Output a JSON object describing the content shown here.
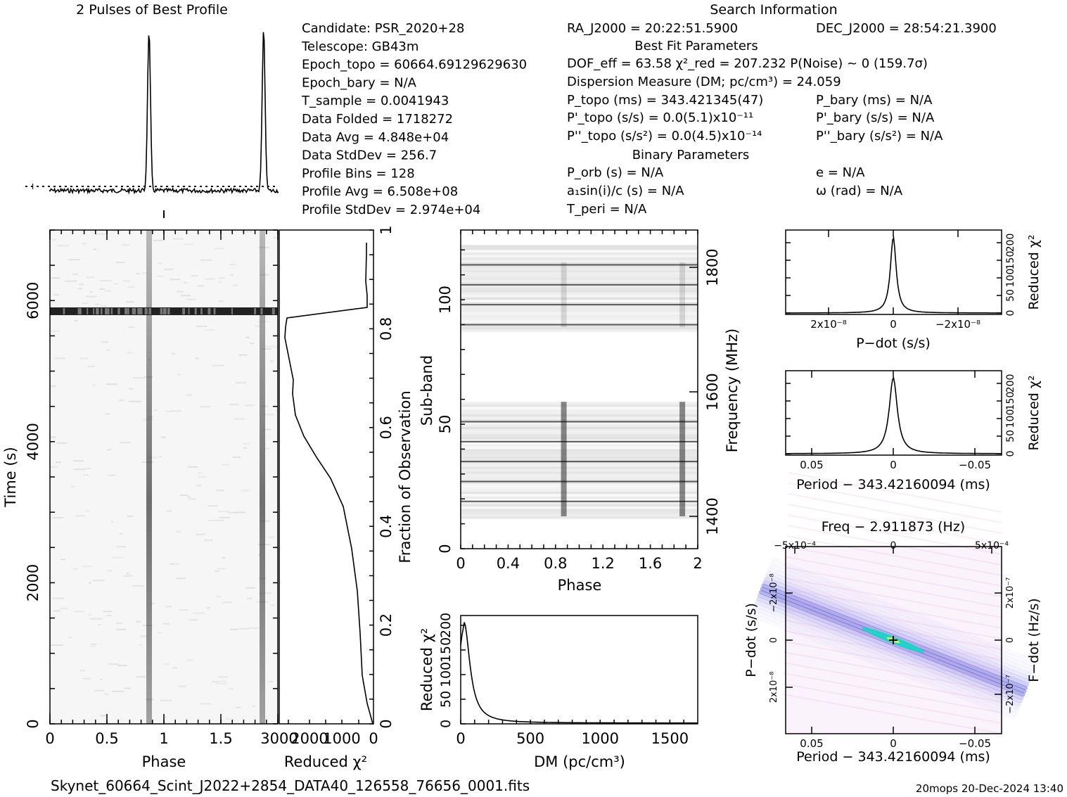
{
  "titles": {
    "profile": "2 Pulses of Best Profile",
    "search": "Search Information",
    "best_fit": "Best Fit Parameters",
    "binary": "Binary Parameters"
  },
  "info_left": [
    "Candidate:  PSR_2020+28",
    "Telescope:  GB43m",
    "Epoch_topo = 60664.69129629630",
    "Epoch_bary = N/A",
    "T_sample        =  0.0041943",
    "Data Folded    =  1718272",
    "Data Avg        =  4.848e+04",
    "Data StdDev   =  256.7",
    "Profile Bins    =  128",
    "Profile Avg     =  6.508e+08",
    "Profile StdDev =  2.974e+04"
  ],
  "info_mid": {
    "ra": "RA_J2000 = 20:22:51.5900",
    "dof": "DOF_eff = 63.58  χ²_red = 207.232  P(Noise) ~ 0   (159.7σ)",
    "dm": "Dispersion Measure (DM; pc/cm³) = 24.059",
    "p_topo": "P_topo (ms) =  343.421345(47)",
    "pd_topo": "P'_topo (s/s) = 0.0(5.1)x10⁻¹¹",
    "pdd_topo": "P''_topo (s/s²) = 0.0(4.5)x10⁻¹⁴",
    "p_orb": "P_orb (s) = N/A",
    "a1": "a₁sin(i)/c (s) = N/A",
    "t_peri": "T_peri = N/A"
  },
  "info_right": {
    "dec": "DEC_J2000 = 28:54:21.3900",
    "p_bary": "P_bary (ms) = N/A",
    "pd_bary": "P'_bary (s/s) = N/A",
    "pdd_bary": "P''_bary (s/s²) = N/A",
    "e": "e = N/A",
    "omega": "ω (rad) = N/A"
  },
  "footer": {
    "filename": "Skynet_60664_Scint_J2022+2854_DATA40_126558_76656_0001.fits",
    "stamp": "20mops 20-Dec-2024 13:40"
  },
  "chart_data": [
    {
      "type": "line",
      "name": "profile",
      "title": "2 Pulses of Best Profile",
      "xlim": [
        0,
        2
      ],
      "pulse_phases": [
        0.87,
        1.87
      ]
    },
    {
      "type": "heatmap",
      "name": "time-phase",
      "xlabel": "Phase",
      "ylabel": "Time (s)",
      "xlim": [
        0,
        2
      ],
      "ylim": [
        0,
        7000
      ],
      "xticks": [
        "0",
        "0.5",
        "1",
        "1.5",
        "2"
      ],
      "yticks": [
        "0",
        "2000",
        "4000",
        "6000"
      ],
      "pulse_phases": [
        0.87,
        1.87
      ],
      "rfi_time": 6000
    },
    {
      "type": "line",
      "name": "time-chi2",
      "xlabel": "Reduced χ²",
      "ylabel_right": "Fraction of Observation",
      "xticks": [
        "3000",
        "2000",
        "1000",
        "0"
      ],
      "yticks_right": [
        "0",
        "0.2",
        "0.4",
        "0.6",
        "0.8",
        "1"
      ]
    },
    {
      "type": "heatmap",
      "name": "subband-phase",
      "xlabel": "Phase",
      "ylabel": "Sub-band",
      "ylabel_right": "Frequency (MHz)",
      "xlim": [
        0,
        2
      ],
      "ylim": [
        0,
        128
      ],
      "xticks": [
        "0",
        "0.4",
        "0.8",
        "1.2",
        "1.6",
        "2"
      ],
      "yticks": [
        "0",
        "50",
        "100"
      ],
      "yticks_right": [
        "1400",
        "1600",
        "1800"
      ],
      "pulse_phases": [
        0.87,
        1.87
      ]
    },
    {
      "type": "line",
      "name": "dm-chi2",
      "xlabel": "DM (pc/cm³)",
      "ylabel": "Reduced χ²",
      "xlim": [
        0,
        1700
      ],
      "xticks": [
        "0",
        "500",
        "1000",
        "1500"
      ],
      "yticks": [
        "0",
        "50",
        "100",
        "150",
        "200"
      ],
      "peak_dm": 24.059
    },
    {
      "type": "line",
      "name": "pdot-chi2",
      "xlabel": "P−dot (s/s)",
      "ylabel": "Reduced χ²",
      "xticks": [
        "2x10⁻⁸",
        "0",
        "−2x10⁻⁸"
      ],
      "yticks": [
        "0",
        "50",
        "100",
        "150",
        "200"
      ]
    },
    {
      "type": "line",
      "name": "period-chi2",
      "xlabel": "Period − 343.42160094 (ms)",
      "ylabel": "Reduced χ²",
      "xticks": [
        "0.05",
        "0",
        "−0.05"
      ],
      "yticks": [
        "0",
        "50",
        "100",
        "150",
        "200"
      ]
    },
    {
      "type": "heatmap",
      "name": "period-pdot",
      "title": "Freq − 2.911873 (Hz)",
      "xlabel": "Period − 343.42160094 (ms)",
      "ylabel": "P−dot (s/s)",
      "ylabel_right": "F−dot (Hz/s)",
      "xticks": [
        "0.05",
        "0",
        "−0.05"
      ],
      "xticks_top": [
        "−5x10⁻⁴",
        "0",
        "5x10⁻⁴"
      ],
      "yticks": [
        "−2x10⁻⁸",
        "0",
        "2x10⁻⁸"
      ],
      "yticks_right": [
        "2x10⁻⁷",
        "0",
        "−2x10⁻⁷"
      ]
    }
  ]
}
